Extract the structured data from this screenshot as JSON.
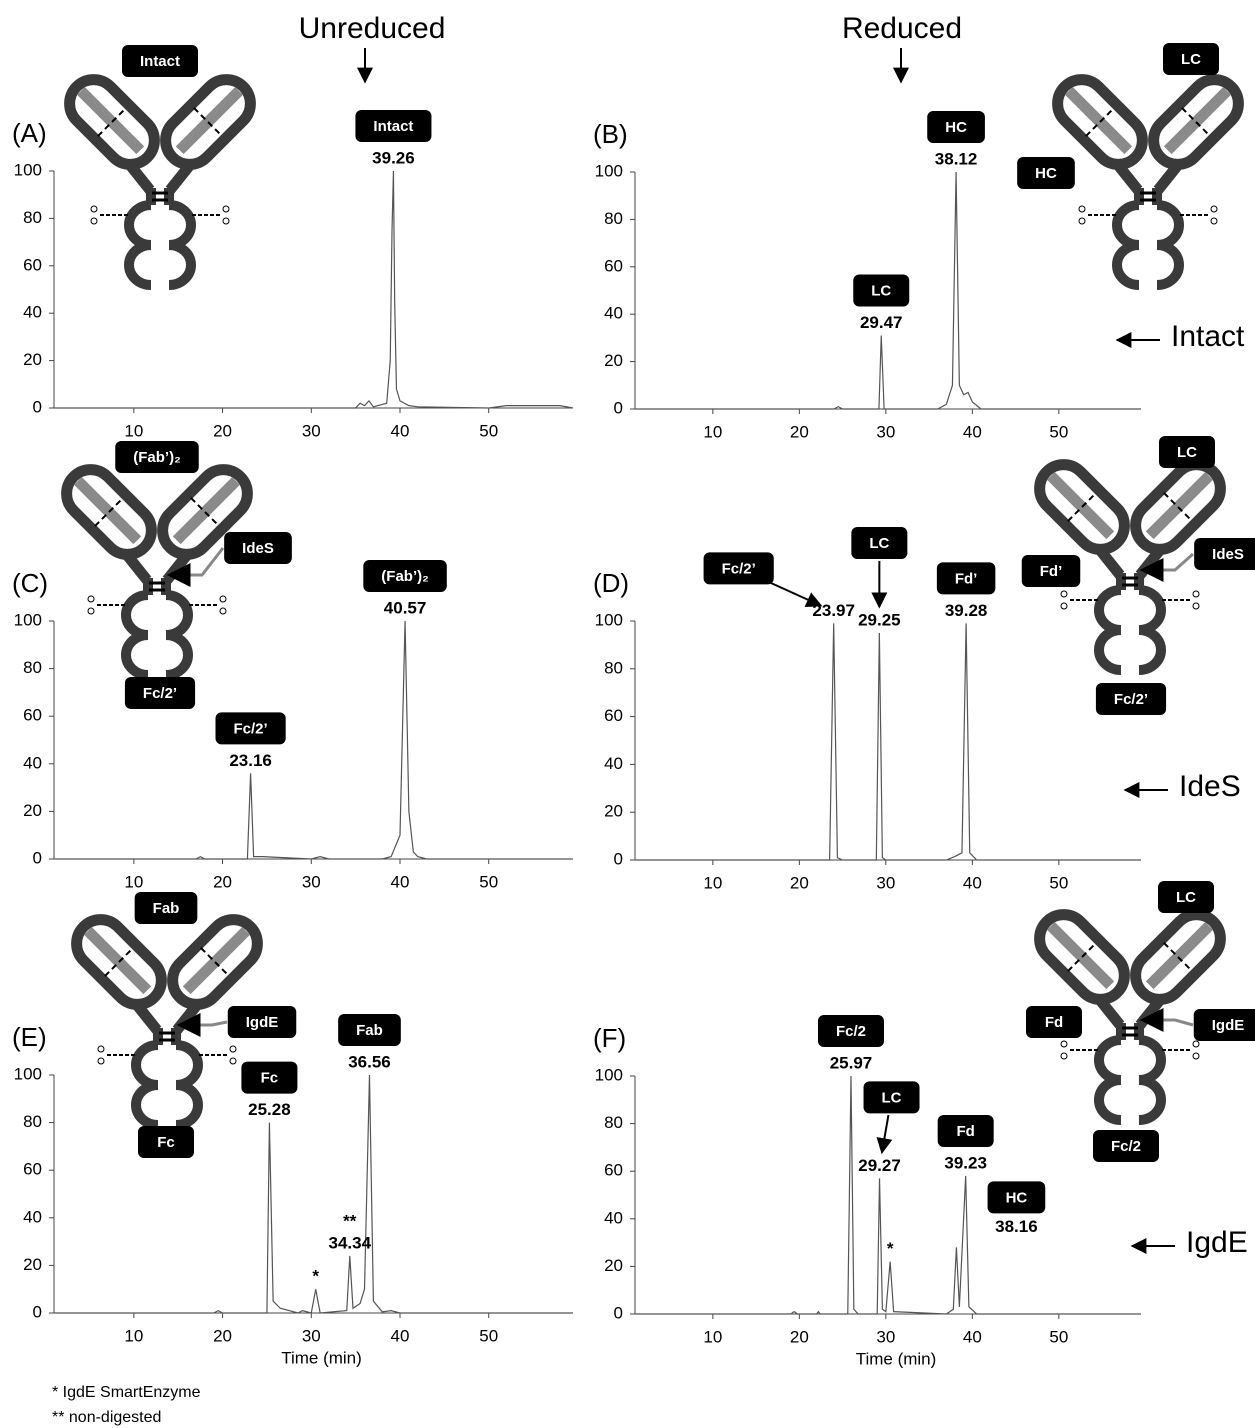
{
  "column_labels": [
    "Unreduced",
    "Reduced"
  ],
  "row_labels": [
    "Intact",
    "IdeS",
    "IgdE"
  ],
  "footnotes": [
    "* IgdE SmartEnzyme",
    "** non-digested"
  ],
  "chart_data": [
    {
      "type": "line",
      "panel_label": "(A)",
      "diagram_labels": [
        "Intact"
      ],
      "xlim": [
        1,
        59.5
      ],
      "ylim": [
        0,
        100
      ],
      "xticks": [
        10,
        20,
        30,
        40,
        50
      ],
      "yticks": [
        0,
        20,
        40,
        60,
        80,
        100
      ],
      "color": "#555555",
      "x": [
        1,
        20,
        35,
        35.5,
        36,
        36.5,
        37,
        38.5,
        38.9,
        39.1,
        39.26,
        39.4,
        39.6,
        40,
        41,
        42,
        50,
        52,
        58,
        59.5
      ],
      "y": [
        0,
        0,
        0,
        2,
        1,
        3,
        0.5,
        2,
        20,
        75,
        100,
        45,
        8,
        3,
        1,
        0.5,
        0,
        1,
        1,
        0
      ],
      "annotations": [
        {
          "x": 39.26,
          "y": 100,
          "label": "Intact"
        }
      ]
    },
    {
      "type": "line",
      "panel_label": "(B)",
      "diagram_labels": [
        "LC",
        "HC"
      ],
      "xlim": [
        1,
        59.5
      ],
      "ylim": [
        0,
        100
      ],
      "xticks": [
        10,
        20,
        30,
        40,
        50
      ],
      "yticks": [
        0,
        20,
        40,
        60,
        80,
        100
      ],
      "color": "#555555",
      "x": [
        1,
        24,
        24.5,
        25,
        29.2,
        29.47,
        29.8,
        36,
        37,
        37.7,
        38.12,
        38.5,
        39,
        39.5,
        40,
        41,
        59.5
      ],
      "y": [
        0,
        0,
        1,
        0,
        0,
        31,
        0,
        0,
        2,
        10,
        100,
        10,
        6,
        7,
        3,
        0,
        0
      ],
      "annotations": [
        {
          "x": 29.47,
          "y": 31,
          "label": "LC"
        },
        {
          "x": 38.12,
          "y": 100,
          "label": "HC"
        }
      ]
    },
    {
      "type": "line",
      "panel_label": "(C)",
      "diagram_labels": [
        "(Fab’)₂",
        "IdeS",
        "Fc/2’"
      ],
      "xlim": [
        1,
        59.5
      ],
      "ylim": [
        0,
        100
      ],
      "xticks": [
        10,
        20,
        30,
        40,
        50
      ],
      "yticks": [
        0,
        20,
        40,
        60,
        80,
        100
      ],
      "color": "#555555",
      "x": [
        1,
        17,
        17.5,
        18,
        22.8,
        23.16,
        23.5,
        24.5,
        30,
        31,
        32,
        38,
        39,
        40,
        40.57,
        41,
        41.5,
        42,
        43,
        59.5
      ],
      "y": [
        0,
        0,
        1,
        0,
        0,
        36,
        1,
        1,
        0,
        1,
        0,
        0,
        1,
        10,
        100,
        20,
        3,
        1,
        0,
        0
      ],
      "annotations": [
        {
          "x": 23.16,
          "y": 36,
          "label": "Fc/2’"
        },
        {
          "x": 40.57,
          "y": 100,
          "label": "(Fab’)₂"
        }
      ]
    },
    {
      "type": "line",
      "panel_label": "(D)",
      "diagram_labels": [
        "LC",
        "Fd’",
        "IdeS",
        "Fc/2’"
      ],
      "xlim": [
        1,
        59.5
      ],
      "ylim": [
        0,
        100
      ],
      "xticks": [
        10,
        20,
        30,
        40,
        50
      ],
      "yticks": [
        0,
        20,
        40,
        60,
        80,
        100
      ],
      "color": "#555555",
      "x": [
        1,
        23.5,
        23.97,
        24.4,
        25,
        28.9,
        29.25,
        29.6,
        30,
        37,
        38,
        38.8,
        39.28,
        39.7,
        40.5,
        59.5
      ],
      "y": [
        0,
        0,
        99,
        1,
        0,
        0,
        95,
        1,
        0,
        0,
        1.5,
        3,
        99,
        3,
        0,
        0
      ],
      "annotations": [
        {
          "x": 23.97,
          "y": 99,
          "label": "Fc/2’",
          "arrow": true
        },
        {
          "x": 29.25,
          "y": 95,
          "label": "LC",
          "arrow": true
        },
        {
          "x": 39.28,
          "y": 99,
          "label": "Fd’"
        }
      ]
    },
    {
      "type": "line",
      "panel_label": "(E)",
      "diagram_labels": [
        "Fab",
        "IgdE",
        "Fc"
      ],
      "xlabel": "Time (min)",
      "xlim": [
        1,
        59.5
      ],
      "ylim": [
        0,
        100
      ],
      "xticks": [
        10,
        20,
        30,
        40,
        50
      ],
      "yticks": [
        0,
        20,
        40,
        60,
        80,
        100
      ],
      "color": "#555555",
      "x": [
        1,
        19,
        19.5,
        20,
        25,
        25.28,
        25.7,
        26.5,
        28.5,
        29,
        30,
        30.5,
        31,
        34,
        34.34,
        34.7,
        35.5,
        36,
        36.56,
        37,
        38,
        39,
        40,
        59.5
      ],
      "y": [
        0,
        0,
        1,
        0,
        0,
        80,
        5,
        2,
        0,
        1,
        0,
        10,
        0,
        1,
        24,
        2,
        4,
        10,
        100,
        5,
        0.5,
        1,
        0,
        0
      ],
      "annotations": [
        {
          "x": 25.28,
          "y": 80,
          "label": "Fc"
        },
        {
          "x": 34.34,
          "y": 24,
          "note": "**"
        },
        {
          "x": 36.56,
          "y": 100,
          "label": "Fab"
        }
      ],
      "markers": [
        {
          "text": "*",
          "x": 30.5,
          "y": 10
        }
      ]
    },
    {
      "type": "line",
      "panel_label": "(F)",
      "diagram_labels": [
        "LC",
        "Fd",
        "IgdE",
        "Fc/2"
      ],
      "xlabel": "Time (min)",
      "xlim": [
        1,
        59.5
      ],
      "ylim": [
        0,
        100
      ],
      "xticks": [
        10,
        20,
        30,
        40,
        50
      ],
      "yticks": [
        0,
        20,
        40,
        60,
        80,
        100
      ],
      "color": "#555555",
      "x": [
        1,
        19,
        19.4,
        19.8,
        22,
        22.2,
        22.4,
        25.6,
        25.97,
        26.3,
        26.8,
        29,
        29.27,
        29.6,
        30,
        30.5,
        30.9,
        37,
        37.8,
        38.16,
        38.5,
        39.23,
        39.6,
        40.5,
        59.5
      ],
      "y": [
        0,
        0,
        1,
        0,
        0,
        1,
        0,
        0,
        100,
        2,
        0,
        0,
        57,
        2,
        1,
        22,
        1,
        0,
        2,
        28,
        3,
        58,
        3,
        0,
        0
      ],
      "annotations": [
        {
          "x": 25.97,
          "y": 100,
          "label": "Fc/2"
        },
        {
          "x": 29.27,
          "y": 57,
          "label": "LC",
          "arrow": true
        },
        {
          "x": 39.23,
          "y": 58,
          "label": "Fd"
        },
        {
          "x": 38.16,
          "y": 28,
          "label": "HC"
        }
      ],
      "markers": [
        {
          "text": "*",
          "x": 30.5,
          "y": 22
        }
      ]
    }
  ]
}
